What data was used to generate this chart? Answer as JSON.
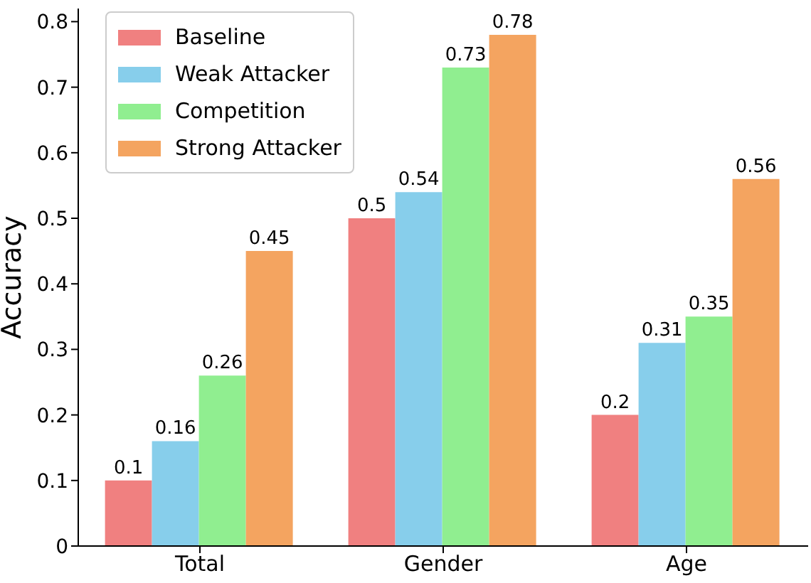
{
  "chart_data": {
    "type": "bar",
    "ylabel": "Accuracy",
    "categories": [
      "Total",
      "Gender",
      "Age"
    ],
    "series": [
      {
        "name": "Baseline",
        "color": "#f08080",
        "values": [
          0.1,
          0.5,
          0.2
        ]
      },
      {
        "name": "Weak Attacker",
        "color": "#87ceeb",
        "values": [
          0.16,
          0.54,
          0.31
        ]
      },
      {
        "name": "Competition",
        "color": "#90ee90",
        "values": [
          0.26,
          0.73,
          0.35
        ]
      },
      {
        "name": "Strong Attacker",
        "color": "#f4a460",
        "values": [
          0.45,
          0.78,
          0.56
        ]
      }
    ],
    "ylim": [
      0,
      0.82
    ],
    "yticks": [
      0,
      0.1,
      0.2,
      0.3,
      0.4,
      0.5,
      0.6,
      0.7,
      0.8
    ],
    "grid": false,
    "legend": "top left",
    "data_labels": true
  }
}
